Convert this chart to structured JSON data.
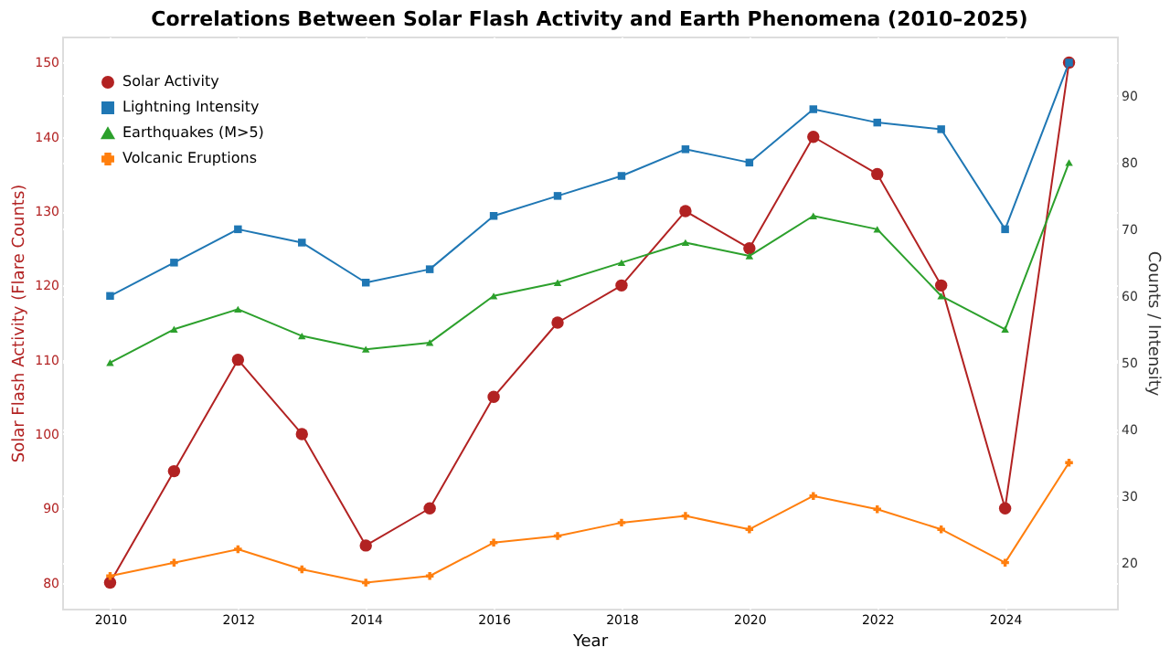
{
  "chart_data": {
    "type": "line",
    "title": "Correlations Between Solar Flash Activity and Earth Phenomena (2010–2025)",
    "xlabel": "Year",
    "ylabel": "Solar Flash Activity (Flare Counts)",
    "y2label": "Counts / Intensity",
    "x": [
      2010,
      2011,
      2012,
      2013,
      2014,
      2015,
      2016,
      2017,
      2018,
      2019,
      2020,
      2021,
      2022,
      2023,
      2024,
      2025
    ],
    "series": [
      {
        "name": "Solar Activity",
        "color": "#b22222",
        "marker": "circle",
        "values": [
          80,
          95,
          110,
          100,
          85,
          90,
          105,
          115,
          120,
          130,
          125,
          140,
          135,
          120,
          90,
          150
        ]
      },
      {
        "name": "Lightning Intensity",
        "color": "#1f77b4",
        "marker": "square",
        "axis": "y2",
        "values": [
          60,
          65,
          70,
          68,
          62,
          64,
          72,
          75,
          78,
          82,
          80,
          88,
          86,
          85,
          70,
          95
        ]
      },
      {
        "name": "Earthquakes (M>5)",
        "color": "#2ca02c",
        "marker": "triangle",
        "axis": "y2",
        "values": [
          50,
          55,
          58,
          54,
          52,
          53,
          60,
          62,
          65,
          68,
          66,
          72,
          70,
          60,
          55,
          80
        ]
      },
      {
        "name": "Volcanic Eruptions",
        "color": "#ff7f0e",
        "marker": "cross",
        "axis": "y2",
        "values": [
          18,
          20,
          22,
          19,
          17,
          18,
          23,
          24,
          26,
          27,
          25,
          30,
          28,
          25,
          20,
          35
        ]
      }
    ],
    "xlim": [
      2009.25,
      2025.75
    ],
    "xticks": [
      2010,
      2012,
      2014,
      2016,
      2018,
      2020,
      2022,
      2024
    ],
    "ylim": [
      76.5,
      153.5
    ],
    "yticks": [
      80,
      90,
      100,
      110,
      120,
      130,
      140,
      150
    ],
    "y2lim": [
      13.1,
      98.9
    ],
    "y2ticks": [
      20,
      30,
      40,
      50,
      60,
      70,
      80,
      90
    ],
    "grid": true,
    "legend": "top left"
  }
}
